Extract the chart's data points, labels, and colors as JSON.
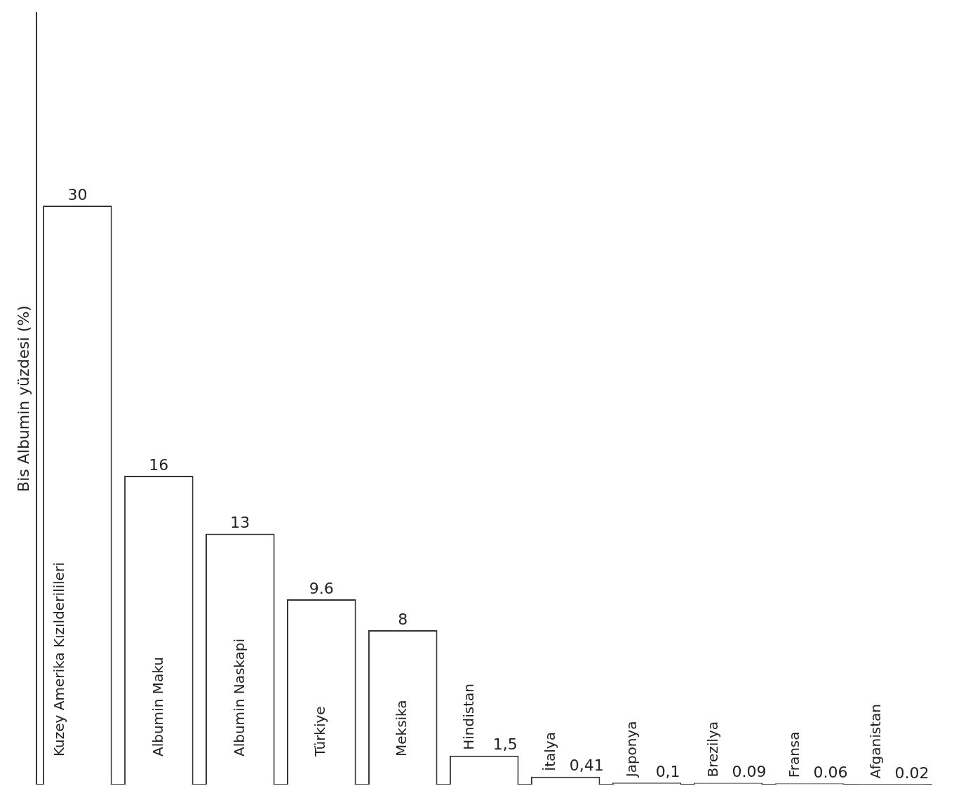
{
  "chart_data": {
    "type": "bar",
    "ylabel": "Bis Albumin yüzdesi (%)",
    "categories": [
      "Kuzey Amerika Kızılderilileri",
      "Albumin Maku",
      "Albumin Naskapi",
      "Türkiye",
      "Meksika",
      "Hindistan",
      "İtalya",
      "Japonya",
      "Brezilya",
      "Fransa",
      "Afganistan"
    ],
    "values": [
      30,
      16,
      13,
      9.6,
      8,
      1.5,
      0.41,
      0.1,
      0.09,
      0.06,
      0.02
    ],
    "value_labels": [
      "30",
      "16",
      "13",
      "9.6",
      "8",
      "1,5",
      "0,41",
      "0,1",
      "0.09",
      "0.06",
      "0.02"
    ],
    "color": "#ffffff",
    "grid": false,
    "legend": false
  }
}
